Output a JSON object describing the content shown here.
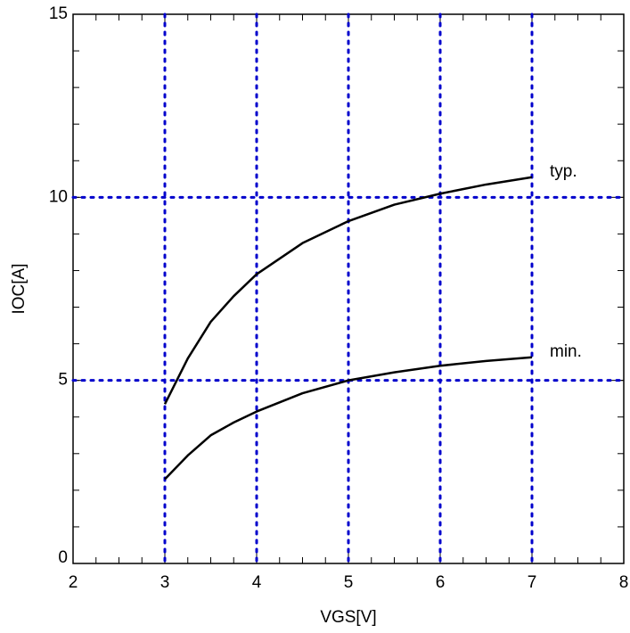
{
  "chart_data": {
    "type": "line",
    "x_label": "VGS[V]",
    "y_label": "IOC[A]",
    "x": [
      3,
      3.25,
      3.5,
      3.75,
      4,
      4.5,
      5,
      5.5,
      6,
      6.5,
      7
    ],
    "series": [
      {
        "name": "typ.",
        "color": "#000000",
        "values": [
          4.35,
          5.6,
          6.6,
          7.3,
          7.9,
          8.75,
          9.35,
          9.8,
          10.1,
          10.35,
          10.55
        ]
      },
      {
        "name": "min.",
        "color": "#000000",
        "values": [
          2.3,
          2.95,
          3.5,
          3.85,
          4.15,
          4.65,
          5.0,
          5.22,
          5.4,
          5.53,
          5.63
        ]
      }
    ],
    "xlim": [
      2,
      8
    ],
    "xticks": [
      2,
      3,
      4,
      5,
      6,
      7,
      8
    ],
    "x_minor_step": 0.25,
    "ylim": [
      0,
      15
    ],
    "yticks": [
      0,
      5,
      10,
      15
    ],
    "y_minor_step": 1,
    "grid": true,
    "grid_color": "#0000cc",
    "legend": "line-end"
  }
}
